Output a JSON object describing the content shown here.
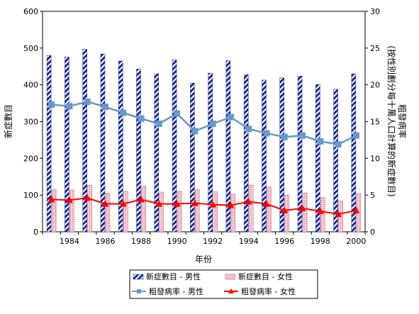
{
  "chart_data": {
    "type": "bar",
    "title": "",
    "categories": [
      "1983",
      "1984",
      "1985",
      "1986",
      "1987",
      "1988",
      "1989",
      "1990",
      "1991",
      "1992",
      "1993",
      "1994",
      "1995",
      "1996",
      "1997",
      "1998",
      "1999",
      "2000"
    ],
    "x_tick_labels": [
      "1984",
      "1986",
      "1988",
      "1990",
      "1992",
      "1994",
      "1996",
      "1998",
      "2000"
    ],
    "xlabel": "年份",
    "ylabel_left": "新症數目",
    "ylabel_right": [
      "粗發病率",
      "(按性別劃分每十萬人口計算的新症數目)"
    ],
    "ylim_left": [
      0,
      600
    ],
    "ylim_right": [
      0,
      30
    ],
    "yticks_left": [
      0,
      100,
      200,
      300,
      400,
      500,
      600
    ],
    "yticks_right": [
      0,
      5,
      10,
      15,
      20,
      25,
      30
    ],
    "grid": false,
    "legend_position": "bottom",
    "series": [
      {
        "name": "新症數目 - 男性",
        "type": "bar",
        "axis": "left",
        "color": "#1f2f8f",
        "values": [
          480,
          476,
          497,
          484,
          465,
          443,
          430,
          468,
          405,
          432,
          466,
          428,
          413,
          419,
          424,
          401,
          388,
          430
        ]
      },
      {
        "name": "新症數目 - 女性",
        "type": "bar",
        "axis": "left",
        "color": "#e8a0b0",
        "values": [
          115,
          114,
          127,
          105,
          110,
          125,
          108,
          110,
          115,
          109,
          103,
          127,
          122,
          100,
          106,
          93,
          84,
          104
        ]
      },
      {
        "name": "粗發病率 - 男性",
        "type": "line",
        "axis": "right",
        "color": "#6699cc",
        "values": [
          17.3,
          17.1,
          17.7,
          17.0,
          16.2,
          15.4,
          14.7,
          16.1,
          13.7,
          14.7,
          15.6,
          14.0,
          13.4,
          12.9,
          13.1,
          12.3,
          11.9,
          13.1
        ]
      },
      {
        "name": "粗發病率 - 女性",
        "type": "line",
        "axis": "right",
        "color": "#ff0000",
        "values": [
          4.4,
          4.3,
          4.6,
          3.8,
          3.8,
          4.4,
          3.8,
          3.8,
          3.9,
          3.7,
          3.6,
          4.1,
          3.8,
          2.9,
          3.2,
          2.8,
          2.4,
          2.9
        ]
      }
    ]
  }
}
